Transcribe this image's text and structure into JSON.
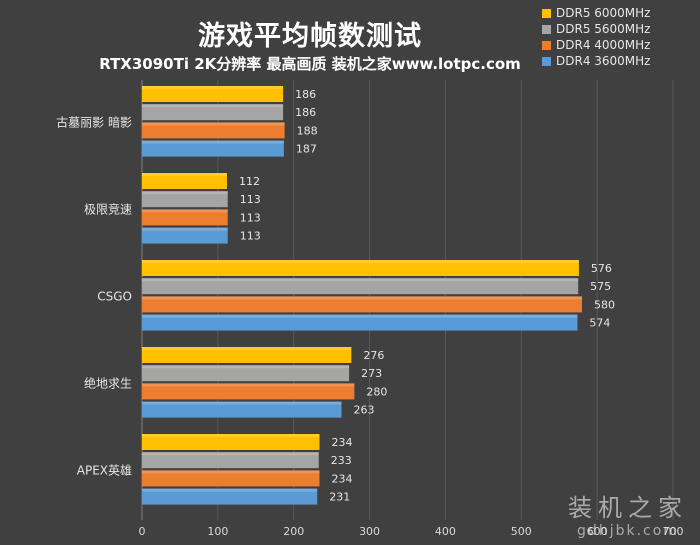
{
  "title": "游戏平均帧数测试",
  "subtitle": "RTX3090Ti 2K分辨率 最高画质 装机之家www.lotpc.com",
  "watermark": {
    "main": "装机之家",
    "sub": "gdhjbk.com"
  },
  "chart_data": {
    "type": "bar",
    "orientation": "horizontal",
    "categories": [
      "古墓丽影 暗影",
      "极限竞速",
      "CSGO",
      "绝地求生",
      "APEX英雄"
    ],
    "series": [
      {
        "name": "DDR5 6000MHz",
        "color": "#FFC000",
        "values": [
          186,
          112,
          576,
          276,
          234
        ]
      },
      {
        "name": "DDR5 5600MHz",
        "color": "#A5A5A5",
        "values": [
          186,
          113,
          575,
          273,
          233
        ]
      },
      {
        "name": "DDR4 4000MHz",
        "color": "#ED7D31",
        "values": [
          188,
          113,
          580,
          280,
          234
        ]
      },
      {
        "name": "DDR4 3600MHz",
        "color": "#5B9BD5",
        "values": [
          187,
          113,
          574,
          263,
          231
        ]
      }
    ],
    "xlim": [
      0,
      700
    ],
    "xticks": [
      0,
      100,
      200,
      300,
      400,
      500,
      600,
      700
    ],
    "grid": true,
    "legend_position": "top-right",
    "data_labels": true
  }
}
